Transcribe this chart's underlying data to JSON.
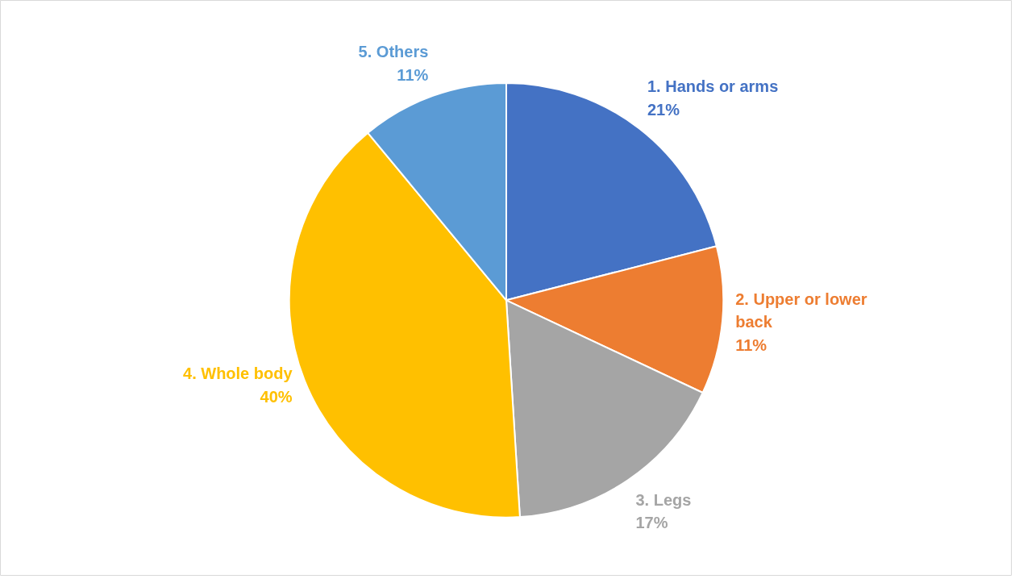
{
  "chart_data": {
    "type": "pie",
    "categories": [
      "1. Hands or arms",
      "2. Upper or lower back",
      "3. Legs",
      "4. Whole body",
      "5. Others"
    ],
    "values": [
      21,
      11,
      17,
      40,
      11
    ],
    "colors": [
      "#4472c4",
      "#ed7d31",
      "#a5a5a5",
      "#ffc000",
      "#5b9bd5"
    ],
    "value_labels": [
      "21%",
      "11%",
      "17%",
      "40%",
      "11%"
    ]
  }
}
